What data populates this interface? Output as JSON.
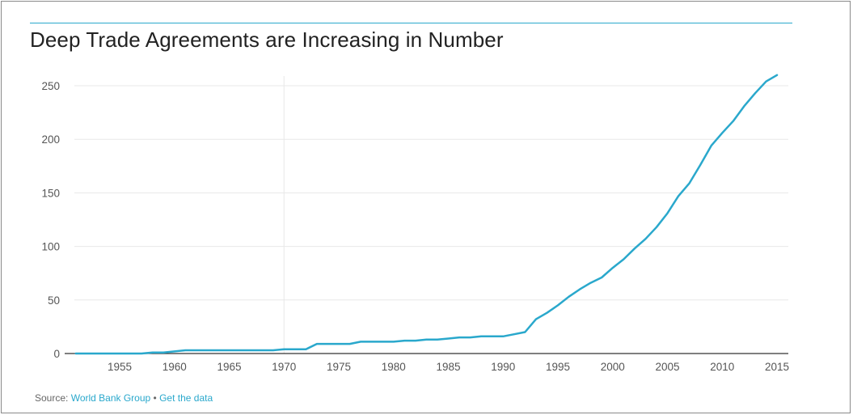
{
  "chart_data": {
    "type": "line",
    "title": "Deep Trade Agreements are Increasing in Number",
    "xlabel": "",
    "ylabel": "",
    "xlim": [
      1950,
      2016
    ],
    "ylim": [
      0,
      260
    ],
    "x_ticks": [
      "1955",
      "1960",
      "1965",
      "1970",
      "1975",
      "1980",
      "1985",
      "1990",
      "1995",
      "2000",
      "2005",
      "2010",
      "2015"
    ],
    "y_ticks": [
      "0",
      "50",
      "100",
      "150",
      "200",
      "250"
    ],
    "grid": true,
    "color": "#2aa8cc",
    "x": [
      1951,
      1952,
      1953,
      1954,
      1955,
      1956,
      1957,
      1958,
      1959,
      1960,
      1961,
      1962,
      1963,
      1964,
      1965,
      1966,
      1967,
      1968,
      1969,
      1970,
      1971,
      1972,
      1973,
      1974,
      1975,
      1976,
      1977,
      1978,
      1979,
      1980,
      1981,
      1982,
      1983,
      1984,
      1985,
      1986,
      1987,
      1988,
      1989,
      1990,
      1991,
      1992,
      1993,
      1994,
      1995,
      1996,
      1997,
      1998,
      1999,
      2000,
      2001,
      2002,
      2003,
      2004,
      2005,
      2006,
      2007,
      2008,
      2009,
      2010,
      2011,
      2012,
      2013,
      2014,
      2015
    ],
    "values": [
      0,
      0,
      0,
      0,
      0,
      0,
      0,
      1,
      1,
      2,
      3,
      3,
      3,
      3,
      3,
      3,
      3,
      3,
      3,
      4,
      4,
      4,
      9,
      9,
      9,
      9,
      11,
      11,
      11,
      11,
      12,
      12,
      13,
      13,
      14,
      15,
      15,
      16,
      16,
      16,
      18,
      20,
      32,
      38,
      45,
      53,
      60,
      66,
      71,
      80,
      88,
      98,
      107,
      118,
      131,
      147,
      159,
      176,
      194,
      206,
      217,
      231,
      243,
      254,
      260
    ]
  },
  "source": {
    "prefix": "Source: ",
    "name": "World Bank Group",
    "separator": " • ",
    "get_data": "Get the data"
  }
}
